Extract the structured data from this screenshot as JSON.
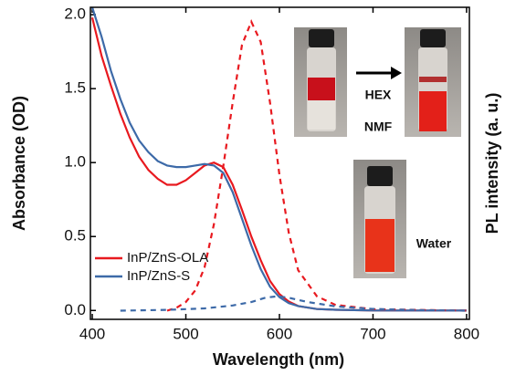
{
  "chart_data": {
    "type": "line",
    "x_label": "Wavelength (nm)",
    "y_label": "Absorbance (OD)",
    "y2_label": "PL intensity  (a. u.)",
    "xlim": [
      398,
      803
    ],
    "xticks": [
      400,
      500,
      600,
      700,
      800
    ],
    "ylim": [
      -0.06,
      2.05
    ],
    "yticks": [
      {
        "value": 0,
        "label": "0.0"
      },
      {
        "value": 0.5,
        "label": "0.5"
      },
      {
        "value": 1,
        "label": "1.0"
      },
      {
        "value": 1.5,
        "label": "1.5"
      },
      {
        "value": 2,
        "label": "2.0"
      }
    ],
    "y2lim": [
      -0.03,
      1.05
    ],
    "legend": "lower left",
    "series": [
      {
        "name": "InP/ZnS-OLA",
        "color": "#e8191f",
        "style": "solid",
        "x": [
          400,
          410,
          420,
          430,
          440,
          450,
          460,
          470,
          480,
          490,
          500,
          510,
          520,
          530,
          540,
          550,
          560,
          570,
          580,
          590,
          600,
          610,
          620,
          640,
          660,
          700,
          800
        ],
        "values": [
          1.98,
          1.72,
          1.52,
          1.33,
          1.17,
          1.04,
          0.95,
          0.89,
          0.85,
          0.85,
          0.88,
          0.93,
          0.98,
          1.0,
          0.97,
          0.85,
          0.68,
          0.5,
          0.34,
          0.2,
          0.11,
          0.06,
          0.03,
          0.01,
          0.005,
          0,
          0
        ]
      },
      {
        "name": "InP/ZnS-S",
        "color": "#3d6aa8",
        "style": "solid",
        "x": [
          400,
          410,
          420,
          430,
          440,
          450,
          460,
          470,
          480,
          490,
          500,
          510,
          520,
          530,
          540,
          550,
          560,
          570,
          580,
          590,
          600,
          610,
          620,
          640,
          660,
          700,
          800
        ],
        "values": [
          2.05,
          1.85,
          1.62,
          1.43,
          1.27,
          1.15,
          1.07,
          1.01,
          0.98,
          0.97,
          0.97,
          0.98,
          0.99,
          0.98,
          0.93,
          0.8,
          0.62,
          0.44,
          0.28,
          0.16,
          0.09,
          0.05,
          0.03,
          0.01,
          0.005,
          0,
          0
        ]
      },
      {
        "color": "#e8191f",
        "style": "dashed",
        "axis": "y2",
        "x": [
          480,
          490,
          500,
          510,
          520,
          530,
          540,
          550,
          560,
          570,
          580,
          590,
          600,
          610,
          620,
          640,
          660,
          700,
          800
        ],
        "values": [
          0,
          0.01,
          0.03,
          0.07,
          0.15,
          0.3,
          0.5,
          0.72,
          0.92,
          1.0,
          0.93,
          0.72,
          0.47,
          0.27,
          0.14,
          0.05,
          0.02,
          0.005,
          0
        ]
      },
      {
        "color": "#3d6aa8",
        "style": "dashed",
        "axis": "y2",
        "x": [
          430,
          480,
          520,
          550,
          570,
          585,
          598,
          610,
          630,
          660,
          700,
          750,
          800
        ],
        "values": [
          0,
          0.003,
          0.008,
          0.018,
          0.03,
          0.045,
          0.05,
          0.045,
          0.03,
          0.015,
          0.006,
          0.002,
          0
        ]
      }
    ],
    "annotations": [
      "HEX",
      "NMF",
      "Water"
    ]
  }
}
